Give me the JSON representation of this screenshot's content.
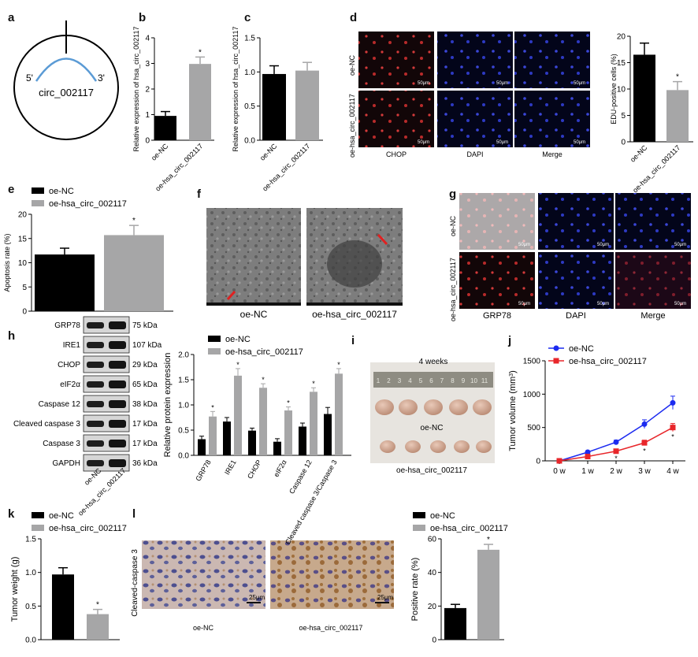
{
  "panels": {
    "labels": {
      "a": "a",
      "b": "b",
      "c": "c",
      "d": "d",
      "e": "e",
      "f": "f",
      "g": "g",
      "h": "h",
      "i": "i",
      "j": "j",
      "k": "k",
      "l": "l"
    },
    "a": {
      "circ_name": "circ_002117",
      "five": "5'",
      "three": "3'"
    },
    "d": {
      "rows": [
        "oe-NC",
        "oe-hsa_circ_002117"
      ],
      "cols": [
        "CHOP",
        "DAPI",
        "Merge"
      ],
      "scale": "50μm"
    },
    "f": {
      "captions": [
        "oe-NC",
        "oe-hsa_circ_002117"
      ]
    },
    "g": {
      "rows": [
        "oe-NC",
        "oe-hsa_circ_002117"
      ],
      "cols": [
        "GRP78",
        "DAPI",
        "Merge"
      ],
      "scale": "50μm"
    },
    "h": {
      "proteins": [
        {
          "name": "GRP78",
          "kda": "75 kDa"
        },
        {
          "name": "IRE1",
          "kda": "107 kDa"
        },
        {
          "name": "CHOP",
          "kda": "29 kDa"
        },
        {
          "name": "eIF2α",
          "kda": "65 kDa"
        },
        {
          "name": "Caspase 12",
          "kda": "38 kDa"
        },
        {
          "name": "Cleaved caspase 3",
          "kda": "17 kDa"
        },
        {
          "name": "Caspase 3",
          "kda": "17 kDa"
        },
        {
          "name": "GAPDH",
          "kda": "36 kDa"
        }
      ],
      "lanes": [
        "oe-NC",
        "oe-hsa_circ_002117"
      ]
    },
    "i": {
      "title": "4 weeks",
      "row_labels": [
        "oe-NC",
        "oe-hsa_circ_002117"
      ],
      "ruler": [
        "1",
        "2",
        "3",
        "4",
        "5",
        "6",
        "7",
        "8",
        "9",
        "10",
        "11"
      ]
    },
    "l": {
      "ylabel": "Cleaved-caspase 3",
      "captions": [
        "oe-NC",
        "oe-hsa_circ_002117"
      ],
      "scale": "25μm"
    }
  },
  "colors": {
    "nc": "#000000",
    "oe": "#a6a6a7",
    "line_nc": "#1c2bf0",
    "line_oe": "#e8262a",
    "red": "#e02020"
  },
  "chart_data": [
    {
      "id": "b",
      "type": "bar",
      "categories": [
        "oe-NC",
        "oe-hsa_circ_002117"
      ],
      "values": [
        0.95,
        2.98
      ],
      "errors": [
        0.17,
        0.27
      ],
      "ylabel": "Relative expression of hsa_circ_002117",
      "ylim": [
        0,
        4
      ],
      "yticks": [
        "0",
        "1",
        "2",
        "3",
        "4"
      ],
      "sig": [
        false,
        true
      ]
    },
    {
      "id": "c",
      "type": "bar",
      "categories": [
        "oe-NC",
        "oe-hsa_circ_002117"
      ],
      "values": [
        0.97,
        1.02
      ],
      "errors": [
        0.12,
        0.12
      ],
      "ylabel": "Relative expression of hsa_circ_002117",
      "ylim": [
        0,
        1.5
      ],
      "yticks": [
        "0.0",
        "0.5",
        "1.0",
        "1.5"
      ],
      "sig": [
        false,
        false
      ]
    },
    {
      "id": "d",
      "type": "bar",
      "categories": [
        "oe-NC",
        "oe-hsa_circ_002117"
      ],
      "values": [
        16.5,
        9.8
      ],
      "errors": [
        2.2,
        1.6
      ],
      "ylabel": "EDU-positive cells (%)",
      "ylim": [
        0,
        20
      ],
      "yticks": [
        "0",
        "5",
        "10",
        "15",
        "20"
      ],
      "sig": [
        false,
        true
      ]
    },
    {
      "id": "e",
      "type": "bar",
      "categories": [
        "oe-NC",
        "oe-hsa_circ_002117"
      ],
      "values": [
        11.7,
        15.7
      ],
      "errors": [
        1.3,
        2.0
      ],
      "ylabel": "Apoptosis rate (%)",
      "ylim": [
        0,
        20
      ],
      "yticks": [
        "0",
        "5",
        "10",
        "15",
        "20"
      ],
      "legend": [
        "oe-NC",
        "oe-hsa_circ_002117"
      ],
      "sig": [
        false,
        true
      ]
    },
    {
      "id": "h",
      "type": "bar",
      "categories": [
        "GRP78",
        "IRE1",
        "CHOP",
        "eIF2α",
        "Caspase 12",
        "Cleaved caspase 3/Caspase 3"
      ],
      "series": [
        {
          "name": "oe-NC",
          "values": [
            0.32,
            0.67,
            0.49,
            0.27,
            0.57,
            0.82
          ],
          "errors": [
            0.06,
            0.08,
            0.05,
            0.06,
            0.07,
            0.13
          ]
        },
        {
          "name": "oe-hsa_circ_002117",
          "values": [
            0.77,
            1.58,
            1.34,
            0.89,
            1.26,
            1.62
          ],
          "errors": [
            0.1,
            0.14,
            0.08,
            0.07,
            0.08,
            0.1
          ]
        }
      ],
      "ylabel": "Relative protein expression",
      "ylim": [
        0,
        2
      ],
      "yticks": [
        "0.0",
        "0.5",
        "1.0",
        "1.5",
        "2.0"
      ]
    },
    {
      "id": "j",
      "type": "line",
      "x": [
        "0 w",
        "1 w",
        "2 w",
        "3 w",
        "4 w"
      ],
      "series": [
        {
          "name": "oe-NC",
          "values": [
            0,
            130,
            280,
            550,
            870
          ],
          "errors": [
            0,
            20,
            30,
            65,
            100
          ]
        },
        {
          "name": "oe-hsa_circ_002117",
          "values": [
            0,
            65,
            145,
            270,
            500
          ],
          "errors": [
            0,
            15,
            25,
            40,
            60
          ]
        }
      ],
      "ylabel": "Tumor volume (mm",
      "ylabel_sup": "3",
      "ylabel_end": ")",
      "ylim": [
        0,
        1500
      ],
      "yticks": [
        "0",
        "500",
        "1000",
        "1500"
      ]
    },
    {
      "id": "k",
      "type": "bar",
      "categories": [
        "oe-NC",
        "oe-hsa_circ_002117"
      ],
      "values": [
        0.97,
        0.38
      ],
      "errors": [
        0.1,
        0.07
      ],
      "ylabel": "Tumor weight (g)",
      "ylim": [
        0,
        1.5
      ],
      "yticks": [
        "0.0",
        "0.5",
        "1.0",
        "1.5"
      ],
      "legend": [
        "oe-NC",
        "oe-hsa_circ_002117"
      ],
      "sig": [
        false,
        true
      ]
    },
    {
      "id": "l",
      "type": "bar",
      "categories": [
        "oe-NC",
        "oe-hsa_circ_002117"
      ],
      "values": [
        18.8,
        53.5
      ],
      "errors": [
        2.2,
        3.2
      ],
      "ylabel": "Positive rate (%)",
      "ylim": [
        0,
        60
      ],
      "yticks": [
        "0",
        "20",
        "40",
        "60"
      ],
      "legend": [
        "oe-NC",
        "oe-hsa_circ_002117"
      ],
      "sig": [
        false,
        true
      ]
    }
  ]
}
